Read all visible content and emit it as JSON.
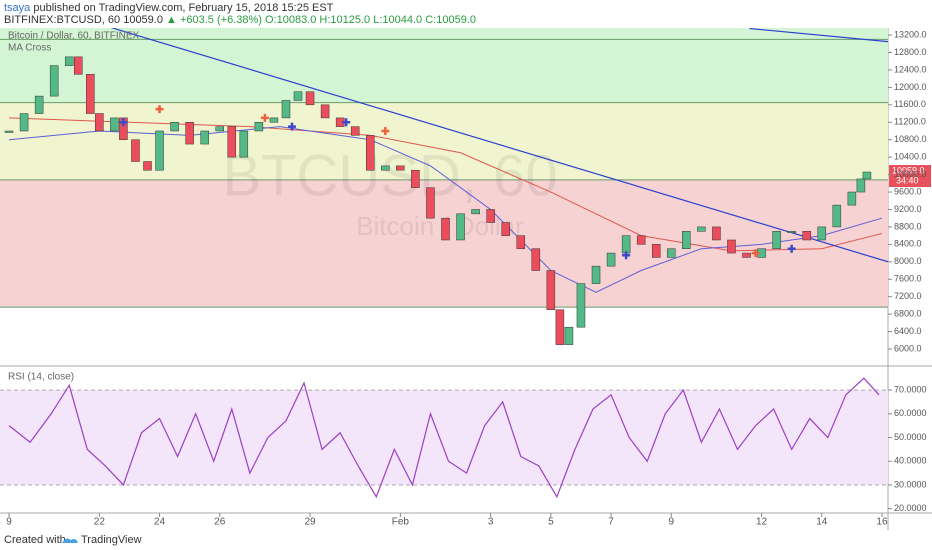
{
  "header": {
    "author": "tsaya",
    "published": "published on TradingView.com, February 15, 2018 15:25 EST",
    "symbol": "BITFINEX:BTCUSD, 60",
    "last": "10059.0",
    "change": "▲ +603.5 (+6.38%)",
    "ohlc": "O:10083.0 H:10125.0 L:10044.0 C:10059.0"
  },
  "footer": {
    "created": "Created with",
    "brand": "TradingView"
  },
  "chart_data": [
    {
      "type": "candlestick",
      "title": "Bitcoin / Dollar, 60, BITFINEX",
      "indicator": "MA Cross",
      "watermark": "BTCUSD, 60",
      "watermark_sub": "Bitcoin / Dollar",
      "x": [
        19,
        19.5,
        20,
        20.5,
        21,
        21.3,
        21.7,
        22,
        22.5,
        22.8,
        23.2,
        23.6,
        24,
        24.5,
        25,
        25.5,
        26,
        26.4,
        26.8,
        27.3,
        27.8,
        28.2,
        28.6,
        29,
        29.5,
        30,
        30.5,
        31,
        31.5,
        32,
        32.5,
        33,
        33.5,
        34,
        34.5,
        35,
        35.5,
        36,
        36.5,
        37,
        37.3,
        37.6,
        38,
        38.5,
        39,
        39.5,
        40,
        40.5,
        41,
        41.5,
        42,
        42.5,
        43,
        43.5,
        44,
        44.5,
        45,
        45.5,
        46,
        46.5,
        47,
        47.3,
        47.5
      ],
      "values": [
        11000,
        11400,
        11800,
        12500,
        12700,
        12300,
        11400,
        11000,
        11300,
        10800,
        10300,
        10100,
        11000,
        11200,
        10700,
        11000,
        11100,
        10400,
        11000,
        11200,
        11300,
        11700,
        11900,
        11600,
        11300,
        11100,
        10900,
        10100,
        10200,
        10100,
        9700,
        9000,
        8500,
        9100,
        9200,
        8900,
        8600,
        8300,
        7800,
        6900,
        6100,
        6500,
        7500,
        7900,
        8200,
        8600,
        8400,
        8100,
        8300,
        8700,
        8800,
        8500,
        8200,
        8100,
        8300,
        8700,
        8700,
        8500,
        8800,
        9300,
        9600,
        9900,
        10059
      ],
      "up_color": "#53b987",
      "down_color": "#eb4d5c",
      "series": [
        {
          "color": "#e0564f",
          "x": [
            19,
            23,
            27,
            31,
            34,
            37,
            40,
            43,
            46,
            48
          ],
          "values": [
            11300,
            11200,
            11100,
            10900,
            10500,
            9600,
            8600,
            8250,
            8300,
            8650
          ]
        },
        {
          "color": "#5c5fd6",
          "x": [
            19,
            22,
            25,
            28,
            31,
            33,
            35,
            37,
            38.5,
            40,
            42,
            44,
            46,
            48
          ],
          "values": [
            10800,
            11000,
            10900,
            11100,
            10800,
            10200,
            9200,
            7800,
            7300,
            7800,
            8300,
            8400,
            8600,
            9000
          ]
        }
      ],
      "markers": [
        {
          "x": 22.8,
          "value": 11200,
          "color": "#3d49c9"
        },
        {
          "x": 24,
          "value": 11500,
          "color": "#f0603e"
        },
        {
          "x": 27.5,
          "value": 11300,
          "color": "#f0603e"
        },
        {
          "x": 28.4,
          "value": 11100,
          "color": "#3d49c9"
        },
        {
          "x": 30.2,
          "value": 11200,
          "color": "#3d49c9"
        },
        {
          "x": 31.5,
          "value": 11000,
          "color": "#f0603e"
        },
        {
          "x": 39.5,
          "value": 8150,
          "color": "#3d49c9"
        },
        {
          "x": 43.8,
          "value": 8200,
          "color": "#f0603e"
        },
        {
          "x": 45,
          "value": 8300,
          "color": "#3d49c9"
        }
      ],
      "trend_lines": [
        {
          "x": [
            21.3,
            48.2
          ],
          "values": [
            13600,
            8000
          ],
          "color": "#2a3fd1"
        },
        {
          "x": [
            43.6,
            48.2
          ],
          "values": [
            13350,
            13050
          ],
          "color": "#2a3fd1"
        }
      ],
      "zones": [
        {
          "from": 11650,
          "to": 13362,
          "color": "#d4f5d4"
        },
        {
          "from": 9880,
          "to": 11650,
          "color": "#f0f5cf"
        },
        {
          "from": 6960,
          "to": 9880,
          "color": "#f6d2d2"
        }
      ],
      "levels": [
        13100,
        11650,
        9880,
        6960
      ],
      "price_tag": "10059.0",
      "countdown": "34:40",
      "xlim": [
        18.7,
        48.2
      ],
      "xticks": [
        {
          "value": 19,
          "label": "9"
        },
        22,
        24,
        26,
        29,
        {
          "value": 32,
          "label": "Feb"
        },
        {
          "value": 35,
          "label": "3"
        },
        {
          "value": 37,
          "label": "5"
        },
        {
          "value": 39,
          "label": "7"
        },
        {
          "value": 41,
          "label": "9"
        },
        {
          "value": 44,
          "label": "12"
        },
        {
          "value": 46,
          "label": "14"
        },
        {
          "value": 48,
          "label": "16"
        }
      ],
      "ylim": [
        5633,
        13362
      ],
      "yticks": [
        {
          "value": 6000,
          "label": "6000.0"
        },
        {
          "value": 6400,
          "label": "6400.0"
        },
        {
          "value": 6800,
          "label": "6800.0"
        },
        {
          "value": 7200,
          "label": "7200.0"
        },
        {
          "value": 7600,
          "label": "7600.0"
        },
        {
          "value": 8000,
          "label": "8000.0"
        },
        {
          "value": 8400,
          "label": "8400.0"
        },
        {
          "value": 8800,
          "label": "8800.0"
        },
        {
          "value": 9200,
          "label": "9200.0"
        },
        {
          "value": 9600,
          "label": "9600.0"
        },
        {
          "value": 10000,
          "label": "10000.0"
        },
        {
          "value": 10400,
          "label": "10400.0"
        },
        {
          "value": 10800,
          "label": "10800.0"
        },
        {
          "value": 11200,
          "label": "11200.0"
        },
        {
          "value": 11600,
          "label": "11600.0"
        },
        {
          "value": 12000,
          "label": "12000.0"
        },
        {
          "value": 12400,
          "label": "12400.0"
        },
        {
          "value": 12800,
          "label": "12800.0"
        },
        {
          "value": 13200,
          "label": "13200.0"
        }
      ]
    },
    {
      "type": "line",
      "title": "RSI (14, close)",
      "color": "#9c3fc4",
      "band": [
        30,
        70
      ],
      "band_color": "#f3e6fb",
      "x": [
        19,
        19.7,
        20.4,
        21,
        21.6,
        22.2,
        22.8,
        23.4,
        24,
        24.6,
        25.2,
        25.8,
        26.4,
        27,
        27.6,
        28.2,
        28.8,
        29.4,
        30,
        30.6,
        31.2,
        31.8,
        32.4,
        33,
        33.6,
        34.2,
        34.8,
        35.4,
        36,
        36.6,
        37.2,
        37.8,
        38.4,
        39,
        39.6,
        40.2,
        40.8,
        41.4,
        42,
        42.6,
        43.2,
        43.8,
        44.4,
        45,
        45.6,
        46.2,
        46.8,
        47.4,
        47.9
      ],
      "values": [
        55,
        48,
        60,
        72,
        45,
        38,
        30,
        52,
        58,
        42,
        60,
        40,
        62,
        35,
        50,
        57,
        73,
        45,
        52,
        38,
        25,
        45,
        30,
        60,
        40,
        35,
        55,
        65,
        42,
        38,
        25,
        45,
        62,
        68,
        50,
        40,
        60,
        70,
        48,
        62,
        45,
        55,
        62,
        45,
        58,
        50,
        68,
        75,
        68
      ],
      "xlim": [
        18.7,
        48.2
      ],
      "ylim": [
        18.6,
        79.3
      ],
      "yticks": [
        {
          "value": 20,
          "label": "20.0000"
        },
        {
          "value": 30,
          "label": "30.0000"
        },
        {
          "value": 40,
          "label": "40.0000"
        },
        {
          "value": 50,
          "label": "50.0000"
        },
        {
          "value": 60,
          "label": "60.0000"
        },
        {
          "value": 70,
          "label": "70.0000"
        }
      ]
    }
  ]
}
